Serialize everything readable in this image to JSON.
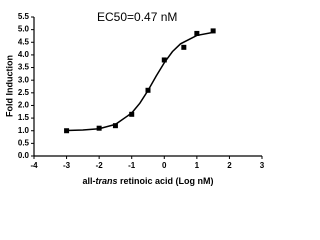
{
  "chart_data": {
    "type": "scatter",
    "annotation": "EC50=0.47 nM",
    "ylabel": "Fold Induction",
    "xlabel_parts": [
      "all-",
      "trans",
      " retinoic acid (Log nM)"
    ],
    "x": [
      -3,
      -2,
      -1.5,
      -1,
      -0.5,
      0,
      0.6,
      1,
      1.5
    ],
    "values": [
      1.0,
      1.1,
      1.2,
      1.65,
      2.6,
      3.8,
      4.3,
      4.85,
      4.95
    ],
    "color": "#000000",
    "fit": {
      "x": [
        -3,
        -2.5,
        -2,
        -1.5,
        -1,
        -0.75,
        -0.5,
        -0.25,
        0,
        0.25,
        0.5,
        1,
        1.5
      ],
      "values": [
        1.01,
        1.03,
        1.08,
        1.25,
        1.7,
        2.09,
        2.59,
        3.16,
        3.69,
        4.13,
        4.44,
        4.77,
        4.89
      ]
    },
    "xlim": [
      -4,
      3
    ],
    "xticks": [
      -4,
      -3,
      -2,
      -1,
      0,
      1,
      2,
      3
    ],
    "ylim": [
      0,
      5.5
    ],
    "yticks": [
      {
        "value": 0,
        "label": "0.0"
      },
      0.5,
      {
        "value": 1,
        "label": "1.0"
      },
      1.5,
      {
        "value": 2,
        "label": "2.0"
      },
      2.5,
      {
        "value": 3,
        "label": "3.0"
      },
      3.5,
      {
        "value": 4,
        "label": "4.0"
      },
      4.5,
      {
        "value": 5,
        "label": "5.0"
      },
      5.5
    ]
  }
}
